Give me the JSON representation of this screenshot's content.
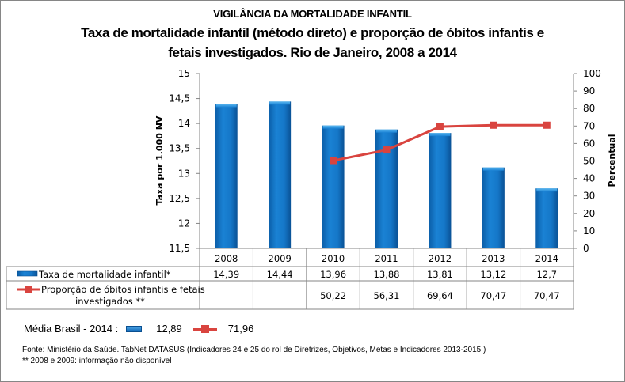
{
  "header": {
    "supertitle": "VIGILÂNCIA DA MORTALIDADE INFANTIL",
    "title_line1": "Taxa de mortalidade infantil (método direto) e proporção de óbitos infantis e",
    "title_line2": "fetais investigados. Rio de Janeiro, 2008 a 2014"
  },
  "chart_data": {
    "type": "bar",
    "title": "Taxa de mortalidade infantil (método direto) e proporção de óbitos infantis e fetais investigados. Rio de Janeiro, 2008 a 2014",
    "categories": [
      "2008",
      "2009",
      "2010",
      "2011",
      "2012",
      "2013",
      "2014"
    ],
    "series": [
      {
        "name": "Taxa de mortalidade infantil*",
        "type": "bar",
        "axis": "left",
        "color": "#1170c4",
        "values": [
          14.39,
          14.44,
          13.96,
          13.88,
          13.81,
          13.12,
          12.7
        ],
        "labels": [
          "14,39",
          "14,44",
          "13,96",
          "13,88",
          "13,81",
          "13,12",
          "12,7"
        ]
      },
      {
        "name": "Proporção de óbitos infantis e fetais investigados **",
        "type": "line",
        "axis": "right",
        "color": "#d9443f",
        "values": [
          null,
          null,
          50.22,
          56.31,
          69.64,
          70.47,
          70.47
        ],
        "labels": [
          "",
          "",
          "50,22",
          "56,31",
          "69,64",
          "70,47",
          "70,47"
        ]
      }
    ],
    "ylabel": "Taxa  por 1.000 NV",
    "ylim": [
      11.5,
      15
    ],
    "yticks": [
      "11,5",
      "12",
      "12,5",
      "13",
      "13,5",
      "14",
      "14,5",
      "15"
    ],
    "y2label": "Percentual",
    "y2lim": [
      0,
      100
    ],
    "y2ticks": [
      "0",
      "10",
      "20",
      "30",
      "40",
      "50",
      "60",
      "70",
      "80",
      "90",
      "100"
    ],
    "grid": false,
    "legend": "data-table"
  },
  "legend_note": {
    "label": "Média Brasil - 2014 :",
    "bar_value": "12,89",
    "line_value": "71,96"
  },
  "footnotes": {
    "source": "Fonte: Ministério da Saúde. TabNet DATASUS (Indicadores  24 e 25 do rol de Diretrizes, Objetivos, Metas e Indicadores 2013-2015 )",
    "note": "** 2008 e 2009: informação não disponível"
  }
}
